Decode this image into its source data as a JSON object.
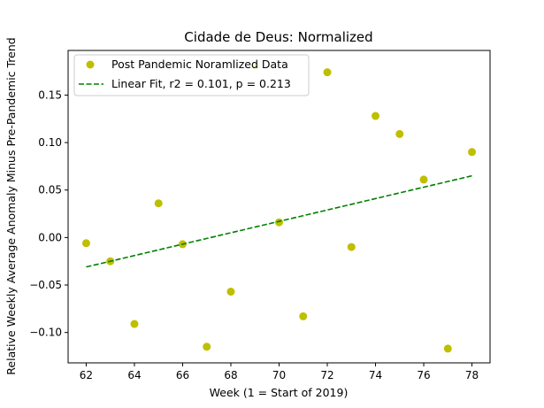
{
  "chart_data": {
    "type": "scatter",
    "title": "Cidade de Deus: Normalized",
    "xlabel": "Week (1 = Start of 2019)",
    "ylabel": "Relative Weekly Average Anomaly Minus Pre-Pandemic Trend",
    "xlim": [
      61.25,
      78.75
    ],
    "ylim": [
      -0.132,
      0.197
    ],
    "xticks": [
      62,
      64,
      66,
      68,
      70,
      72,
      74,
      76,
      78
    ],
    "yticks": [
      -0.1,
      -0.05,
      0.0,
      0.05,
      0.1,
      0.15
    ],
    "grid": false,
    "legend_position": "upper-left",
    "series": [
      {
        "name": "Post Pandemic Noramlized Data",
        "kind": "scatter",
        "color": "#bfbf00",
        "x": [
          62,
          63,
          64,
          65,
          66,
          67,
          68,
          69,
          70,
          71,
          72,
          73,
          74,
          75,
          76,
          77,
          78
        ],
        "y": [
          -0.006,
          -0.025,
          -0.091,
          0.036,
          -0.007,
          -0.115,
          -0.057,
          0.181,
          0.016,
          -0.083,
          0.174,
          -0.01,
          0.128,
          0.109,
          0.061,
          -0.117,
          0.09
        ]
      },
      {
        "name": "Linear Fit, r2 = 0.101, p = 0.213",
        "kind": "line",
        "style": "dashed",
        "color": "#008000",
        "x": [
          62,
          78
        ],
        "y": [
          -0.031,
          0.065
        ]
      }
    ]
  }
}
